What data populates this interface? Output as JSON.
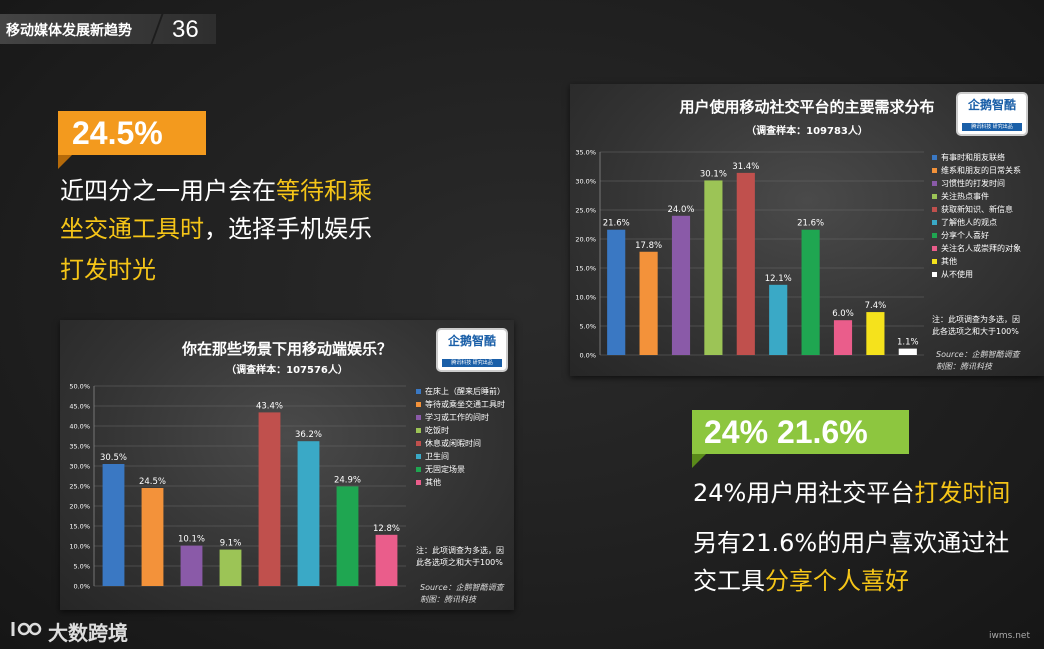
{
  "header": {
    "title": "移动媒体发展新趋势",
    "page": "36"
  },
  "left_block": {
    "badge": "24.5%",
    "line1_a": "近四分之一用户会在",
    "line1_b": "等待和乘",
    "line2_a": "坐交通工具时",
    "line2_b": "，选择手机娱乐",
    "line3": "打发时光"
  },
  "right_block": {
    "badge": "24%  21.6%",
    "line1_a": "24%用户用社交平台",
    "line1_b": "打发时间",
    "line2": "另有21.6%的用户喜欢通过社",
    "line3_a": "交工具",
    "line3_b": "分享个人喜好"
  },
  "logo": {
    "text": "企鹅智酷",
    "sub": "腾讯科技 研究出品"
  },
  "footer": {
    "brand": "大数跨境",
    "watermark": "iwms.net"
  },
  "chart_data": [
    {
      "type": "bar",
      "title": "你在那些场景下用移动端娱乐？",
      "subtitle": "（调查样本：107576人）",
      "categories": [
        "在床上（醒来后睡前）",
        "等待或乘坐交通工具时",
        "学习或工作的间时",
        "吃饭时",
        "休息或闲暇时间",
        "卫生间",
        "无固定场景",
        "其他"
      ],
      "values": [
        30.5,
        24.5,
        10.1,
        9.1,
        43.4,
        36.2,
        24.9,
        12.8
      ],
      "labels": [
        "30.5%",
        "24.5%",
        "10.1%",
        "9.1%",
        "43.4%",
        "36.2%",
        "24.9%",
        "12.8%"
      ],
      "colors": [
        "#3a78c3",
        "#f3923a",
        "#8a5aa8",
        "#9cc456",
        "#c0504d",
        "#3aa9c6",
        "#1fa651",
        "#ea5d8b"
      ],
      "ylim": [
        0,
        50
      ],
      "yticks": [
        "0.0%",
        "5.0%",
        "10.0%",
        "15.0%",
        "20.0%",
        "25.0%",
        "30.0%",
        "35.0%",
        "40.0%",
        "45.0%",
        "50.0%"
      ],
      "legend": "right",
      "note": [
        "注：此项调查为多选，因",
        "此各选项之和大于100%"
      ],
      "source": [
        "Source：企鹅智酷调查",
        "制图：腾讯科技"
      ]
    },
    {
      "type": "bar",
      "title": "用户使用移动社交平台的主要需求分布",
      "subtitle": "（调查样本：109783人）",
      "categories": [
        "有事时和朋友联络",
        "维系和朋友的日常关系",
        "习惯性的打发时间",
        "关注热点事件",
        "获取新知识、新信息",
        "了解他人的观点",
        "分享个人喜好",
        "关注名人或崇拜的对象",
        "其他",
        "从不使用"
      ],
      "values": [
        21.6,
        17.8,
        24.0,
        30.1,
        31.4,
        12.1,
        21.6,
        6.0,
        7.4,
        1.1
      ],
      "labels": [
        "21.6%",
        "17.8%",
        "24.0%",
        "30.1%",
        "31.4%",
        "12.1%",
        "21.6%",
        "6.0%",
        "7.4%",
        "1.1%"
      ],
      "colors": [
        "#3a78c3",
        "#f3923a",
        "#8a5aa8",
        "#9cc456",
        "#c0504d",
        "#3aa9c6",
        "#1fa651",
        "#ea5d8b",
        "#f5e21c",
        "#ffffff"
      ],
      "ylim": [
        0,
        35
      ],
      "yticks": [
        "0.0%",
        "5.0%",
        "10.0%",
        "15.0%",
        "20.0%",
        "25.0%",
        "30.0%",
        "35.0%"
      ],
      "legend": "right",
      "note": [
        "注：此项调查为多选，因",
        "此各选项之和大于100%"
      ],
      "source": [
        "Source：企鹅智酷调查",
        "制图：腾讯科技"
      ]
    }
  ]
}
